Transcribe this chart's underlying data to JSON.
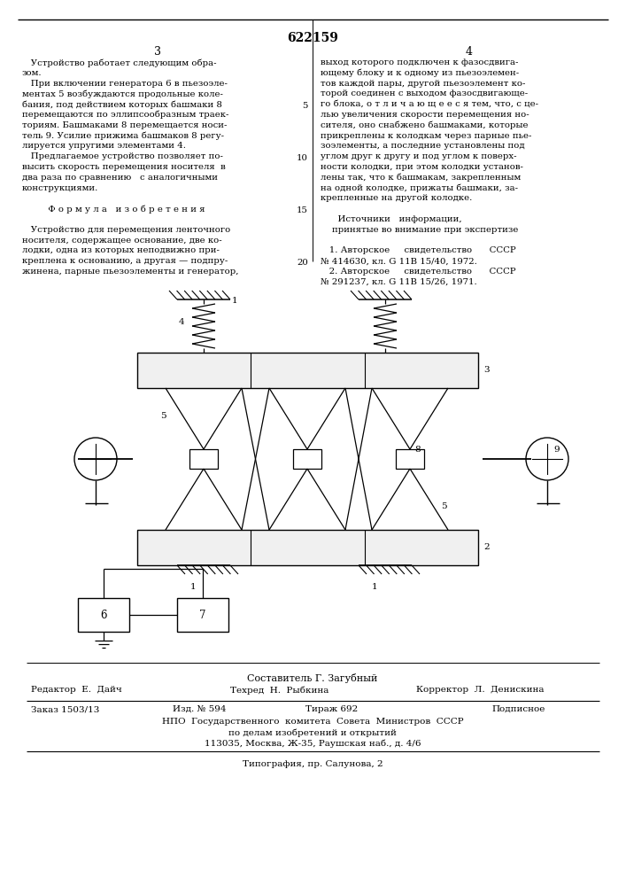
{
  "patent_number": "622159",
  "page_left": "3",
  "page_right": "4",
  "col_left_text": [
    "   Устройство работает следующим обра-",
    "зом.",
    "   При включении генератора 6 в пьезоэле-",
    "ментах 5 возбуждаются продольные коле-",
    "бания, под действием которых башмаки 8",
    "перемещаются по эллипсообразным траек-",
    "ториям. Башмаками 8 перемещается носи-",
    "тель 9. Усилие прижима башмаков 8 регу-",
    "лируется упругими элементами 4.",
    "   Предлагаемое устройство позволяет по-",
    "высить скорость перемещения носителя  в",
    "два раза по сравнению   с аналогичными",
    "конструкциями.",
    "",
    "         Ф о р м у л а   и з о б р е т е н и я",
    "",
    "   Устройство для перемещения ленточного",
    "носителя, содержащее основание, две ко-",
    "лодки, одна из которых неподвижно при-",
    "креплена к основанию, а другая — подпру-",
    "жинена, парные пьезоэлементы и генератор,"
  ],
  "col_right_text": [
    "выход которого подключен к фазосдвига-",
    "ющему блоку и к одному из пьезоэлемен-",
    "тов каждой пары, другой пьезоэлемент ко-",
    "торой соединен с выходом фазосдвигающе-",
    "го блока, о т л и ч а ю щ е е с я тем, что, с це-",
    "лью увеличения скорости перемещения но-",
    "сителя, оно снабжено башмаками, которые",
    "прикреплены к колодкам через парные пье-",
    "зоэлементы, а последние установлены под",
    "углом друг к другу и под углом к поверх-",
    "ности колодки, при этом колодки установ-",
    "лены так, что к башмакам, закрепленным",
    "на одной колодке, прижаты башмаки, за-",
    "крепленные на другой колодке.",
    "",
    "      Источники   информации,",
    "    принятые во внимание при экспертизе",
    "",
    "   1. Авторское     свидетельство      СССР",
    "№ 414630, кл. G 11B 15/40, 1972.",
    "   2. Авторское     свидетельство      СССР",
    "№ 291237, кл. G 11B 15/26, 1971."
  ],
  "composer": "Составитель Г. Загубный",
  "editor": "Редактор  Е.  Дайч",
  "techred": "Техред  Н.  Рыбкина",
  "corrector": "Корректор  Л.  Денискина",
  "order": "Заказ 1503/13",
  "izd": "Изд. № 594",
  "tirazh": "Тираж 692",
  "podpisnoe": "Подписное",
  "npo_line1": "НПО  Государственного  комитета  Совета  Министров  СССР",
  "npo_line2": "по делам изобретений и открытий",
  "npo_line3": "113035, Москва, Ж-35, Раушская наб., д. 4/6",
  "tipografia": "Типография, пр. Салунова, 2",
  "bg_color": "#ffffff",
  "text_color": "#000000"
}
